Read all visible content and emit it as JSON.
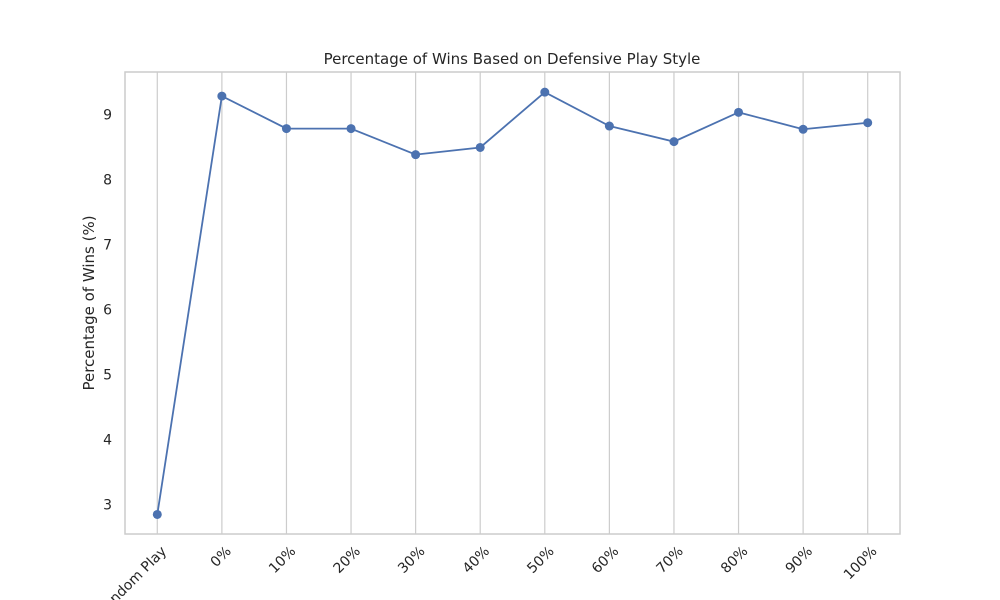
{
  "chart_data": {
    "type": "line",
    "title": "Percentage of Wins Based on Defensive Play Style",
    "xlabel": "",
    "ylabel": "Percentage of Wins (%)",
    "categories": [
      "Random Play",
      "0%",
      "10%",
      "20%",
      "30%",
      "40%",
      "50%",
      "60%",
      "70%",
      "80%",
      "90%",
      "100%"
    ],
    "series": [
      {
        "values": [
          2.85,
          9.28,
          8.78,
          8.78,
          8.38,
          8.49,
          9.34,
          8.82,
          8.58,
          9.03,
          8.77,
          8.87
        ]
      }
    ],
    "yticks": [
      3,
      4,
      5,
      6,
      7,
      8,
      9
    ],
    "ylim": [
      2.55,
      9.65
    ],
    "grid": "vertical",
    "legend": "none",
    "colors": {
      "line": "#4c72b0",
      "grid": "#cccccc",
      "axes": "#cccccc",
      "text": "#262626"
    }
  }
}
